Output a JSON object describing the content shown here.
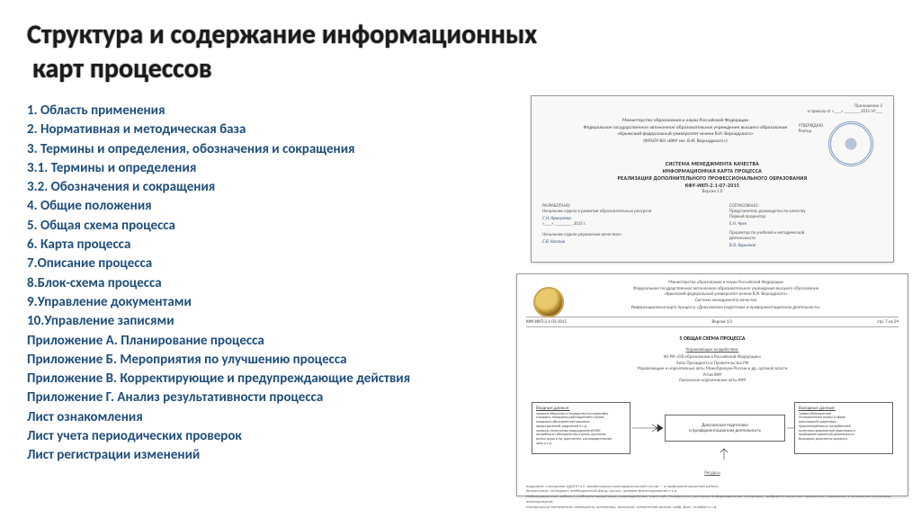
{
  "title_line1": "Структура и содержание информационных",
  "title_line2": "карт процессов",
  "list": [
    {
      "text": "1.   Область применения",
      "indent": false
    },
    {
      "text": "2.   Нормативная и методическая база",
      "indent": false
    },
    {
      "text": "3.   Термины и определения, обозначения и сокращения",
      "indent": false
    },
    {
      "text": "3.1. Термины и определения",
      "indent": false
    },
    {
      "text": "3.2. Обозначения и сокращения",
      "indent": false
    },
    {
      "text": "4.   Общие положения",
      "indent": false
    },
    {
      "text": "5.   Общая схема процесса",
      "indent": false
    },
    {
      "text": "6.   Карта процесса",
      "indent": false
    },
    {
      "text": "7.Описание процесса",
      "indent": false
    },
    {
      "text": "8.Блок-схема процесса",
      "indent": false
    },
    {
      "text": "9.Управление документами",
      "indent": false
    },
    {
      "text": "10.Управление записями",
      "indent": false
    },
    {
      "text": "Приложение А. Планирование процесса",
      "indent": false
    },
    {
      "text": "Приложение Б. Мероприятия по улучшению процесса",
      "indent": false
    },
    {
      "text": "Приложение В. Корректирующие и предупреждающие действия",
      "indent": false
    },
    {
      "text": "Приложение Г. Анализ результативности процесса",
      "indent": false
    },
    {
      "text": "Лист ознакомления",
      "indent": false
    },
    {
      "text": "Лист учета периодических проверок",
      "indent": false
    },
    {
      "text": "Лист регистрации изменений",
      "indent": false
    }
  ],
  "colors": {
    "list_text": "#1f4e79",
    "title_text": "#1a1a1a",
    "stamp_blue": "#3a62a8",
    "seal_gold": "#b78b2e"
  },
  "doc1": {
    "top_right": "Приложение 2\nк приказу от «___» _______ 2015  №___",
    "ministry": "Министерство образования и науки Российской Федерации\nФедеральное государственное автономное образовательное учреждение высшего образования\n«Крымский федеральный университет имени В.И. Вернадского»\n(ФГАОУ ВО «КФУ им. В.И. Вернадского»)",
    "approve": "УТВЕРЖДАЮ\nРектор",
    "block_title1": "СИСТЕМА МЕНЕДЖМЕНТА КАЧЕСТВА",
    "block_title2": "ИНФОРМАЦИОННАЯ КАРТА ПРОЦЕССА",
    "block_title3": "РЕАЛИЗАЦИЯ ДОПОЛНИТЕЛЬНОГО ПРОФЕССИОНАЛЬНОГО ОБРАЗОВАНИЯ",
    "code": "КФУ-ИКП-2.1-07-2015",
    "version": "Версия 1.0",
    "left_label": "РАЗРАБОТАНО:",
    "left_role": "Начальник отдела в развитии образовательных ресурсов",
    "left_name": "С.Н. Крикунова",
    "left_date": "«___» ________ 2015 г.",
    "right_label": "СОГЛАСОВАНО:",
    "right_role1": "Представитель руководства по качеству\nПервый проректор",
    "right_name1": "Е.Н. Чуян",
    "right_role2": "Проректор по учебной и методической\nдеятельности",
    "right_name2": "В.О. Курьянов",
    "qc_label": "Начальник отдела управления качеством",
    "qc_name": "С.В. Костик"
  },
  "doc2": {
    "header": "Министерство образования и науки Российской Федерации\nФедеральное государственное автономное образовательное учреждение высшего образования\n«Крымский федеральный университет имени В.И. Вернадского»\nСистема менеджмента качества",
    "subheader": "Информационная карта процесса «Довузовская подготовка и профориентационная деятельность»",
    "bar_left": "КФУ-ИКП-2.1-03-2015",
    "bar_mid": "Версия 1.0",
    "bar_right": "стр. 7 из 24",
    "section_title": "5  ОБЩАЯ СХЕМА ПРОЦЕССА",
    "upr_label": "Управляющие воздействия:",
    "upr_text": "ФЗ РФ «Об образовании в Российской Федерации»\nАкты Президента и Правительства РФ\nУправляющие и нормативные акты Минобрнауки России и др. органов власти\nУстав КФУ\nЛокальные нормативные акты КФУ",
    "flow_left_title": "Входные данные:",
    "flow_left_body": "запросы общества и государства на подготовку\nучащихся, ожидания работодателей и вузов,\nожидания абитуриентов/законных\nпредставителей, родителей и т.д.\nзапросы структурных подразделений КФУ,\nпотребности абитуриентов и вузов, прогнозы\nрынка труда и пр. документы, распорядительные\nакты и т.д.",
    "flow_center": "Довузовская подготовка\nи профориентационная деятельность",
    "flow_right_title": "Выходные данные:",
    "flow_right_body": "Заявки абитуриентов\nУстановленные планы в сфере\nдовузовской подготовки\nУдовлетворённость потребителей\nкачеством довузовской подготовки и\nпрофориентационной деятельности\nВыходные документы процесса",
    "resources": "Ресурсы",
    "footer": "Кадровые: сотрудники ЦДОПП и К, профессорско-преподавательский состав — в профориентационной работе;\nФинансовые: госбюджет, внебюджетный фонд, гранты, целевое финансирование и т.д.\nИнформационные: работы с учебными заведениями, взаимодействие через сайт Университета, рекламно-информационные материалы, профориентационные программы, справочные и рекламные материалы, анкетирование;\nМатериально-технические: помещения, оргтехника, транспорт, технический резерв, сейф, факс, телефон и т.д."
  }
}
